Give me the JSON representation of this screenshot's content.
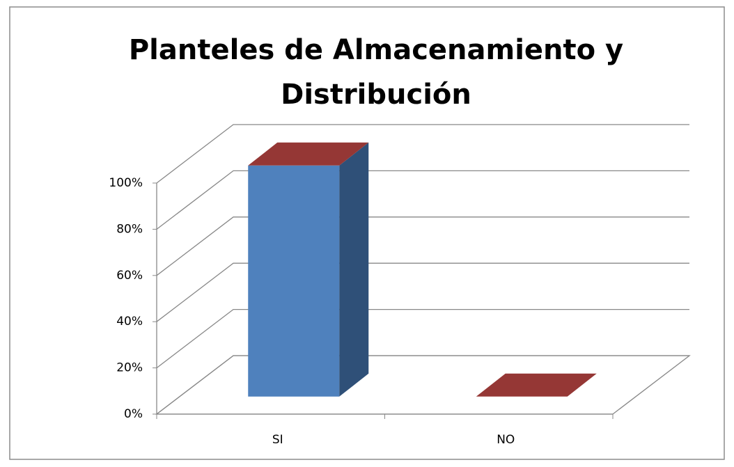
{
  "chart_data": {
    "type": "bar3d",
    "title": "Planteles de Almacenamiento y Distribución",
    "categories": [
      "SI",
      "NO"
    ],
    "values": [
      100,
      0
    ],
    "colors": {
      "front": "#4f81bd",
      "side": "#2f5078",
      "top": "#953735"
    },
    "ylim": [
      0,
      100
    ],
    "yticks": [
      {
        "value": 0,
        "label": "0%"
      },
      {
        "value": 20,
        "label": "20%"
      },
      {
        "value": 40,
        "label": "40%"
      },
      {
        "value": 60,
        "label": "60%"
      },
      {
        "value": 80,
        "label": "80%"
      },
      {
        "value": 100,
        "label": "100%"
      }
    ],
    "grid": true
  }
}
